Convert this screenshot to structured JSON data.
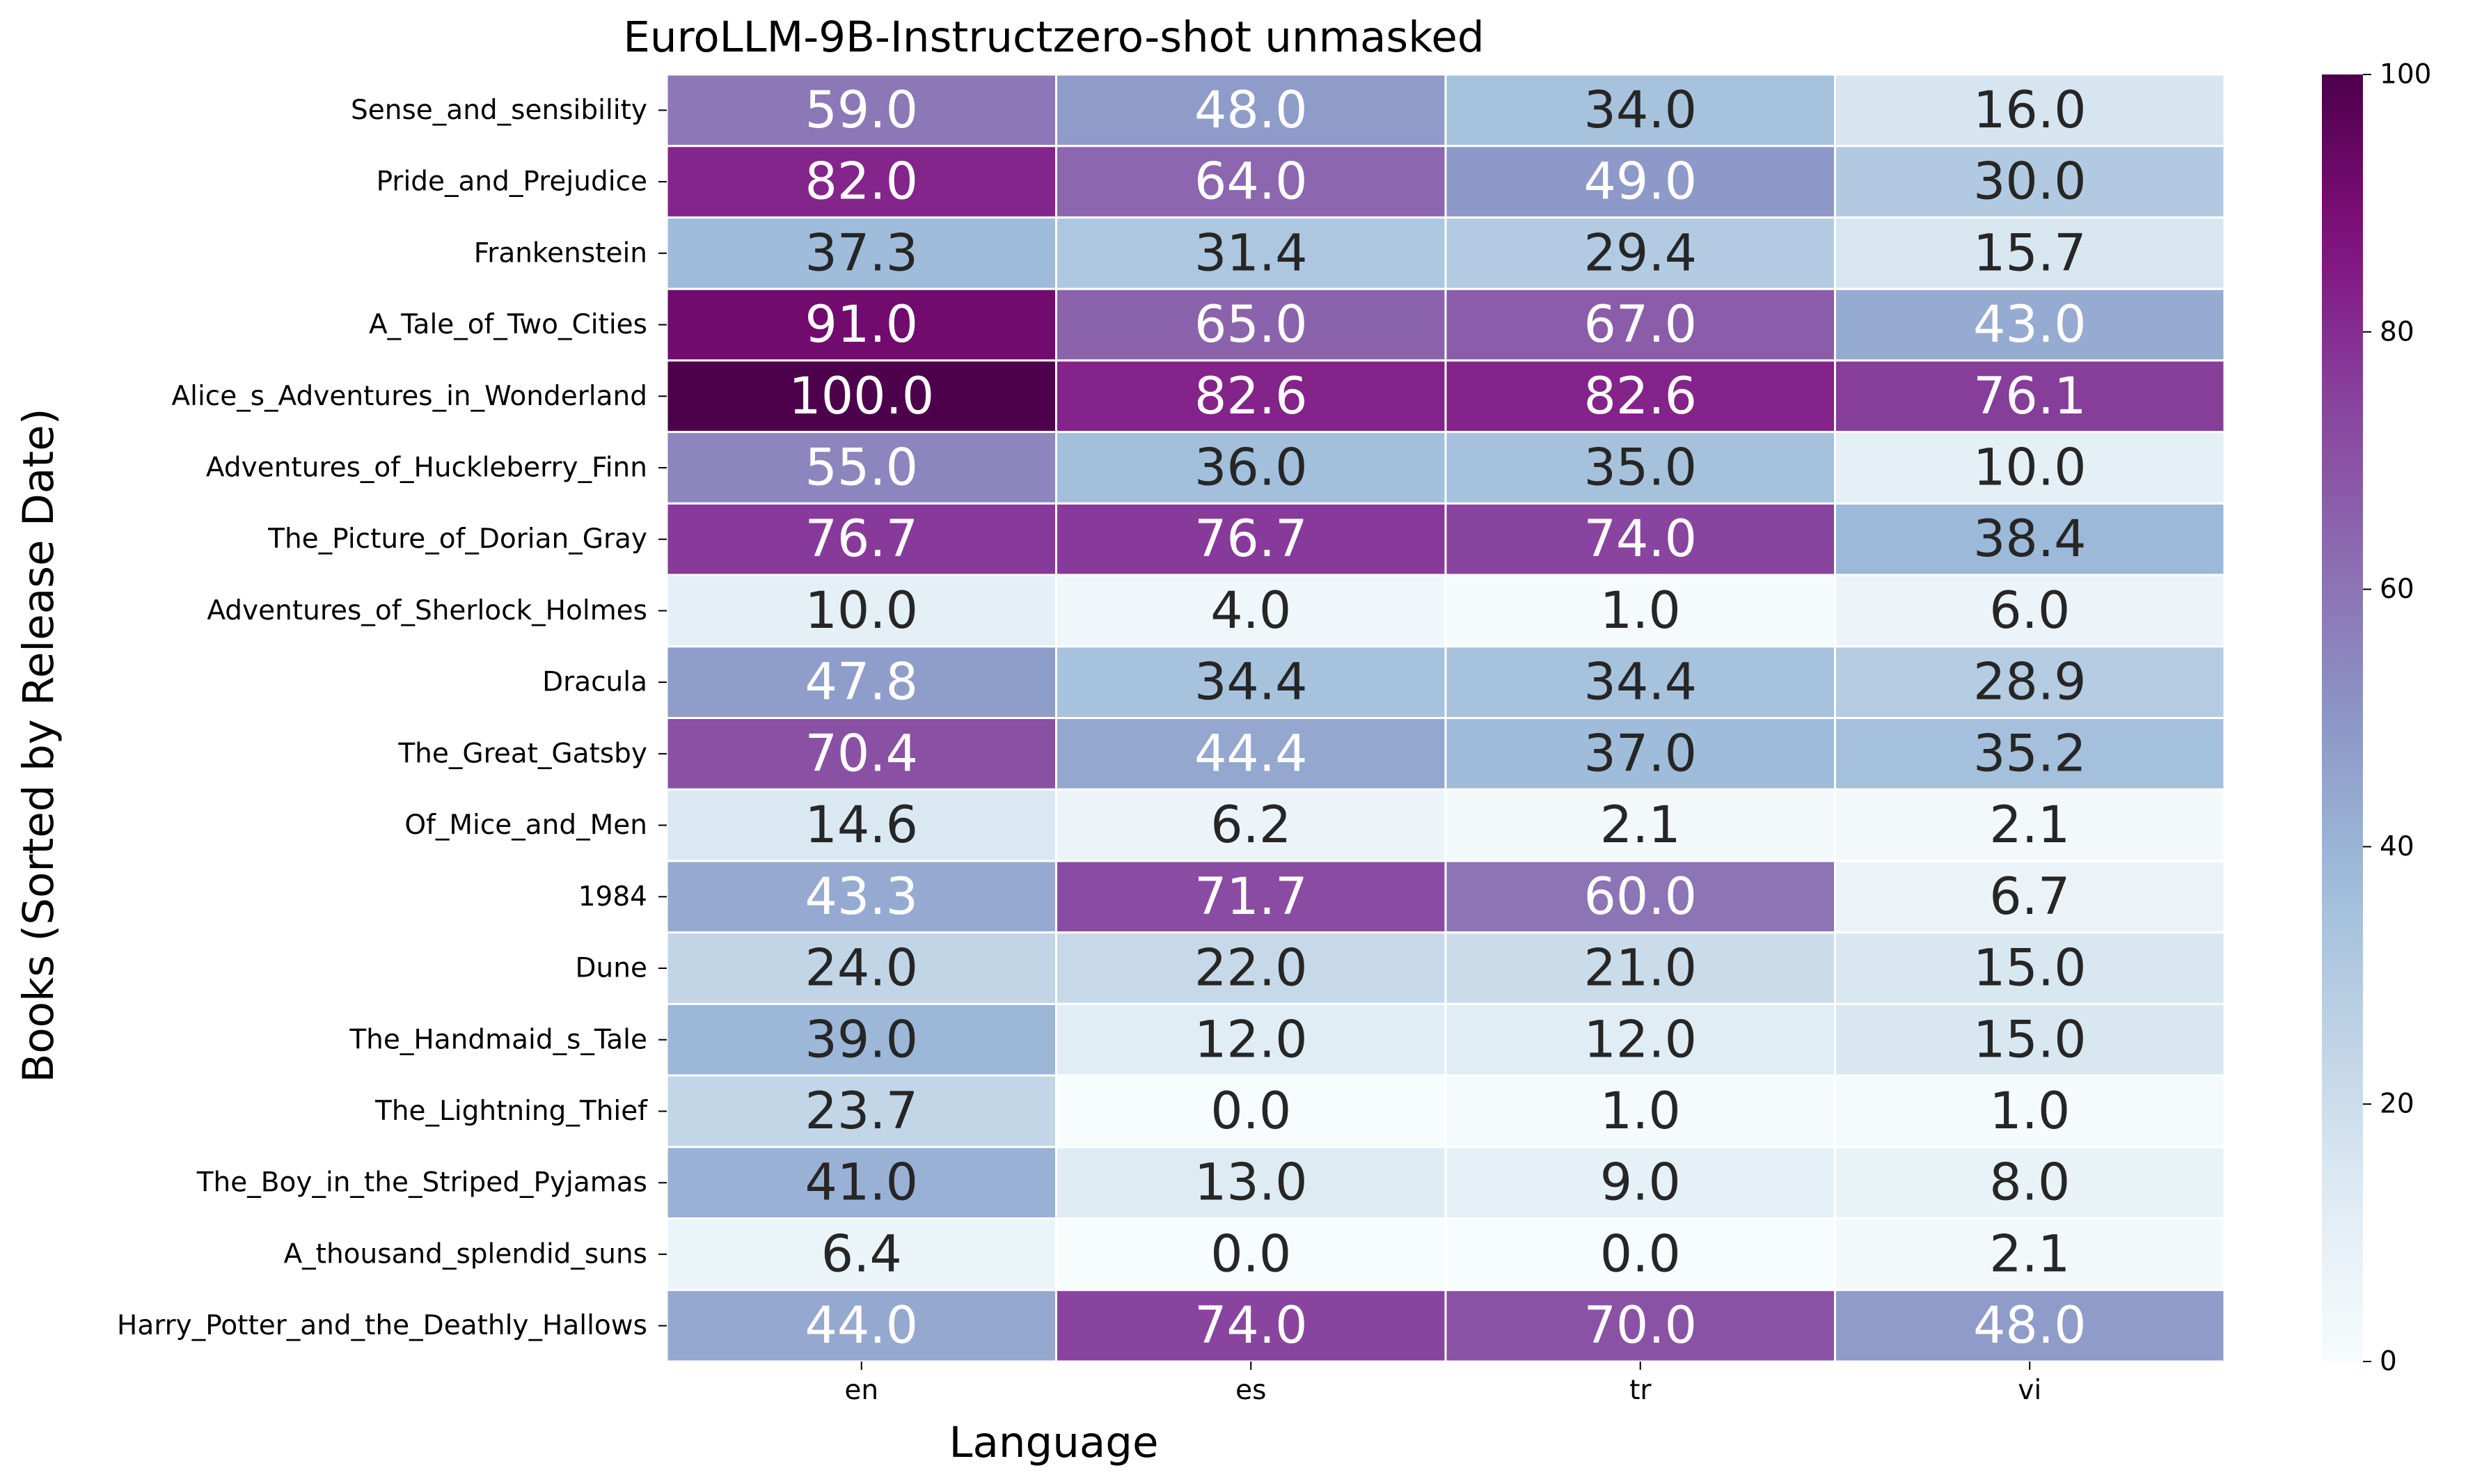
{
  "chart_data": {
    "type": "heatmap",
    "title": "EuroLLM-9B-Instructzero-shot unmasked",
    "xlabel": "Language",
    "ylabel": "Books (Sorted by Release Date)",
    "columns": [
      "en",
      "es",
      "tr",
      "vi"
    ],
    "rows": [
      "Sense_and_sensibility",
      "Pride_and_Prejudice",
      "Frankenstein",
      "A_Tale_of_Two_Cities",
      "Alice_s_Adventures_in_Wonderland",
      "Adventures_of_Huckleberry_Finn",
      "The_Picture_of_Dorian_Gray",
      "Adventures_of_Sherlock_Holmes",
      "Dracula",
      "The_Great_Gatsby",
      "Of_Mice_and_Men",
      "1984",
      "Dune",
      "The_Handmaid_s_Tale",
      "The_Lightning_Thief",
      "The_Boy_in_the_Striped_Pyjamas",
      "A_thousand_splendid_suns",
      "Harry_Potter_and_the_Deathly_Hallows"
    ],
    "values": [
      [
        59.0,
        48.0,
        34.0,
        16.0
      ],
      [
        82.0,
        64.0,
        49.0,
        30.0
      ],
      [
        37.3,
        31.4,
        29.4,
        15.7
      ],
      [
        91.0,
        65.0,
        67.0,
        43.0
      ],
      [
        100.0,
        82.6,
        82.6,
        76.1
      ],
      [
        55.0,
        36.0,
        35.0,
        10.0
      ],
      [
        76.7,
        76.7,
        74.0,
        38.4
      ],
      [
        10.0,
        4.0,
        1.0,
        6.0
      ],
      [
        47.8,
        34.4,
        34.4,
        28.9
      ],
      [
        70.4,
        44.4,
        37.0,
        35.2
      ],
      [
        14.6,
        6.2,
        2.1,
        2.1
      ],
      [
        43.3,
        71.7,
        60.0,
        6.7
      ],
      [
        24.0,
        22.0,
        21.0,
        15.0
      ],
      [
        39.0,
        12.0,
        12.0,
        15.0
      ],
      [
        23.7,
        0.0,
        1.0,
        1.0
      ],
      [
        41.0,
        13.0,
        9.0,
        8.0
      ],
      [
        6.4,
        0.0,
        0.0,
        2.1
      ],
      [
        44.0,
        74.0,
        70.0,
        48.0
      ]
    ],
    "colormap": "BuPu",
    "vmin": 0,
    "vmax": 100,
    "colorbar_ticks": [
      0,
      20,
      40,
      60,
      80,
      100
    ]
  }
}
